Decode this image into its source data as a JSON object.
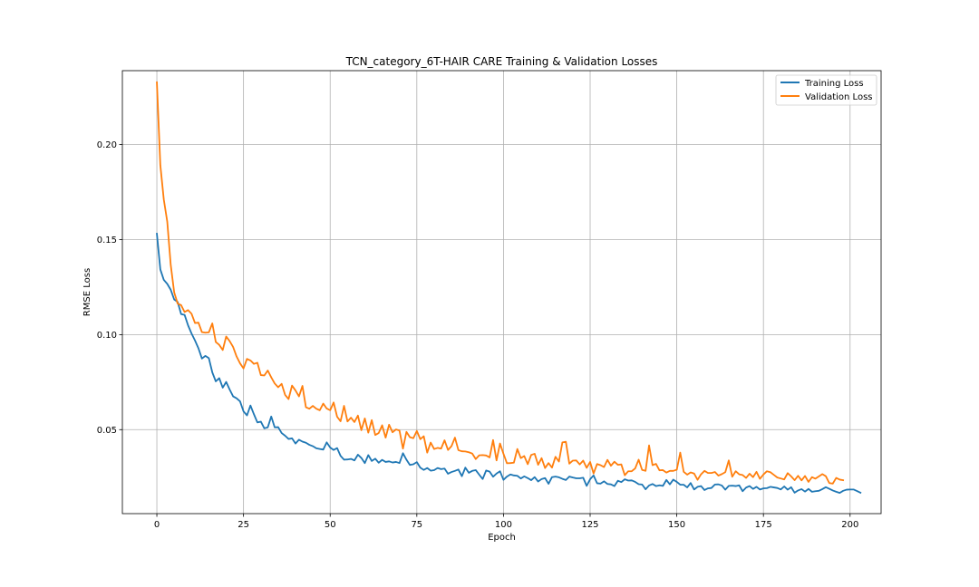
{
  "chart_data": {
    "type": "line",
    "title": "TCN_category_6T-HAIR CARE Training & Validation Losses",
    "xlabel": "Epoch",
    "ylabel": "RMSE Loss",
    "xlim": [
      -9.95,
      208.95
    ],
    "ylim": [
      0.0058,
      0.2389
    ],
    "xticks": [
      0,
      25,
      50,
      75,
      100,
      125,
      150,
      175,
      200
    ],
    "yticks": [
      0.05,
      0.1,
      0.15,
      0.2
    ],
    "ytick_labels": [
      "0.05",
      "0.10",
      "0.15",
      "0.20"
    ],
    "grid": true,
    "legend_position": "top-right",
    "series": [
      {
        "name": "Training Loss",
        "color": "#1f77b4",
        "values": [
          0.1531,
          0.1343,
          0.1288,
          0.1267,
          0.1236,
          0.1185,
          0.1172,
          0.1108,
          0.1104,
          0.1049,
          0.1006,
          0.0969,
          0.0928,
          0.0874,
          0.0888,
          0.0876,
          0.0801,
          0.0754,
          0.0771,
          0.0721,
          0.0751,
          0.0711,
          0.0675,
          0.0665,
          0.0649,
          0.0596,
          0.0575,
          0.0627,
          0.0581,
          0.0538,
          0.0542,
          0.0507,
          0.0512,
          0.0569,
          0.0512,
          0.0513,
          0.0482,
          0.0468,
          0.0451,
          0.0454,
          0.0427,
          0.0447,
          0.0437,
          0.0431,
          0.042,
          0.0413,
          0.0402,
          0.0398,
          0.0395,
          0.0433,
          0.0406,
          0.0393,
          0.0403,
          0.0362,
          0.0342,
          0.0343,
          0.0346,
          0.0338,
          0.0368,
          0.0351,
          0.0324,
          0.0366,
          0.0335,
          0.0347,
          0.0326,
          0.0341,
          0.033,
          0.0333,
          0.0327,
          0.033,
          0.0324,
          0.0376,
          0.0342,
          0.0314,
          0.0318,
          0.0329,
          0.03,
          0.0288,
          0.0298,
          0.0284,
          0.0287,
          0.0298,
          0.0292,
          0.0295,
          0.0268,
          0.0277,
          0.0283,
          0.029,
          0.0255,
          0.03,
          0.0273,
          0.0283,
          0.0287,
          0.0263,
          0.024,
          0.0285,
          0.0279,
          0.0252,
          0.0269,
          0.0281,
          0.0236,
          0.0253,
          0.0264,
          0.0259,
          0.0257,
          0.0243,
          0.0254,
          0.0245,
          0.0234,
          0.025,
          0.0227,
          0.024,
          0.0245,
          0.0215,
          0.025,
          0.0253,
          0.0249,
          0.0241,
          0.0235,
          0.0253,
          0.0248,
          0.0244,
          0.0244,
          0.0247,
          0.0204,
          0.0239,
          0.0259,
          0.0218,
          0.0216,
          0.0228,
          0.0214,
          0.0212,
          0.0203,
          0.0231,
          0.0224,
          0.0239,
          0.0232,
          0.0233,
          0.0225,
          0.0213,
          0.0211,
          0.0186,
          0.0206,
          0.0214,
          0.0203,
          0.0207,
          0.0204,
          0.0235,
          0.0212,
          0.0237,
          0.0225,
          0.021,
          0.021,
          0.0196,
          0.0219,
          0.0185,
          0.0199,
          0.0203,
          0.0182,
          0.0191,
          0.0193,
          0.0211,
          0.0212,
          0.0206,
          0.0184,
          0.0204,
          0.0205,
          0.0203,
          0.0207,
          0.0176,
          0.0195,
          0.0203,
          0.0188,
          0.0199,
          0.0185,
          0.0191,
          0.0192,
          0.0199,
          0.0196,
          0.0193,
          0.0185,
          0.0201,
          0.0184,
          0.0197,
          0.0168,
          0.018,
          0.0187,
          0.0174,
          0.0188,
          0.0173,
          0.0176,
          0.0178,
          0.0187,
          0.0197,
          0.0189,
          0.018,
          0.0173,
          0.0167,
          0.0178,
          0.0184,
          0.0185,
          0.0185,
          0.0177,
          0.0168
        ]
      },
      {
        "name": "Validation Loss",
        "color": "#ff7f0e",
        "values": [
          0.2328,
          0.1892,
          0.1711,
          0.1594,
          0.1367,
          0.1222,
          0.1163,
          0.1155,
          0.1119,
          0.1129,
          0.111,
          0.1061,
          0.1063,
          0.1013,
          0.101,
          0.1012,
          0.1059,
          0.0961,
          0.0946,
          0.0919,
          0.099,
          0.0966,
          0.0935,
          0.0885,
          0.0849,
          0.0822,
          0.0872,
          0.0864,
          0.0846,
          0.0852,
          0.0787,
          0.0785,
          0.0811,
          0.0775,
          0.0743,
          0.0723,
          0.0741,
          0.0683,
          0.0661,
          0.0732,
          0.0706,
          0.0675,
          0.073,
          0.0618,
          0.061,
          0.0625,
          0.061,
          0.0602,
          0.0637,
          0.0611,
          0.0602,
          0.0643,
          0.0568,
          0.0544,
          0.0625,
          0.0543,
          0.0563,
          0.054,
          0.0574,
          0.0497,
          0.0559,
          0.0484,
          0.055,
          0.0472,
          0.0482,
          0.0523,
          0.0458,
          0.0526,
          0.0486,
          0.0501,
          0.0495,
          0.04,
          0.0488,
          0.046,
          0.0455,
          0.0493,
          0.045,
          0.0465,
          0.0379,
          0.0432,
          0.0398,
          0.0404,
          0.04,
          0.0444,
          0.0393,
          0.0413,
          0.0458,
          0.0392,
          0.0386,
          0.0385,
          0.0381,
          0.0374,
          0.0345,
          0.0365,
          0.0366,
          0.0364,
          0.0354,
          0.0445,
          0.0338,
          0.0427,
          0.0373,
          0.0323,
          0.0324,
          0.0326,
          0.0398,
          0.035,
          0.0361,
          0.0318,
          0.0367,
          0.0373,
          0.0315,
          0.035,
          0.0298,
          0.0324,
          0.03,
          0.0357,
          0.0332,
          0.0433,
          0.0436,
          0.0321,
          0.0337,
          0.0338,
          0.0317,
          0.0337,
          0.0299,
          0.033,
          0.0269,
          0.0319,
          0.0313,
          0.0303,
          0.0341,
          0.031,
          0.0331,
          0.0315,
          0.0317,
          0.026,
          0.0281,
          0.0281,
          0.0296,
          0.0342,
          0.0288,
          0.0283,
          0.0417,
          0.0313,
          0.032,
          0.0286,
          0.0287,
          0.0274,
          0.0283,
          0.0283,
          0.0289,
          0.0379,
          0.0278,
          0.0263,
          0.0275,
          0.0269,
          0.0236,
          0.0265,
          0.0283,
          0.0272,
          0.0272,
          0.0277,
          0.0258,
          0.0266,
          0.0276,
          0.0338,
          0.0252,
          0.0281,
          0.0265,
          0.0261,
          0.0246,
          0.0268,
          0.025,
          0.0278,
          0.0241,
          0.0264,
          0.0281,
          0.0276,
          0.0262,
          0.0248,
          0.0243,
          0.0238,
          0.0271,
          0.0254,
          0.0234,
          0.0257,
          0.0233,
          0.0256,
          0.0225,
          0.025,
          0.0242,
          0.0254,
          0.0266,
          0.0255,
          0.0219,
          0.0216,
          0.0246,
          0.0237,
          0.0234
        ]
      }
    ]
  }
}
